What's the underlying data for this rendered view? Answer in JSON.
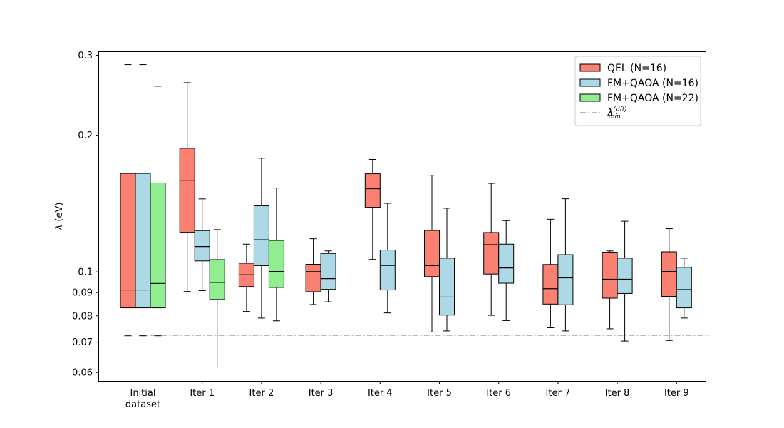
{
  "chart_data": {
    "type": "box",
    "title": "",
    "xlabel": "",
    "ylabel": {
      "symbol": "λ",
      "unit": " (eV)"
    },
    "yscale": "log",
    "ylim": [
      0.0575,
      0.305
    ],
    "yticks": [
      {
        "value": 0.3,
        "label": "0.3"
      },
      {
        "value": 0.2,
        "label": "0.2"
      },
      {
        "value": 0.1,
        "label": "0.1"
      },
      {
        "value": 0.09,
        "label": "0.09"
      },
      {
        "value": 0.08,
        "label": "0.08"
      },
      {
        "value": 0.07,
        "label": "0.07"
      },
      {
        "value": 0.06,
        "label": "0.06"
      }
    ],
    "categories": [
      [
        "Initial",
        "dataset"
      ],
      [
        "Iter 1"
      ],
      [
        "Iter 2"
      ],
      [
        "Iter 3"
      ],
      [
        "Iter 4"
      ],
      [
        "Iter 5"
      ],
      [
        "Iter 6"
      ],
      [
        "Iter 7"
      ],
      [
        "Iter 8"
      ],
      [
        "Iter 9"
      ]
    ],
    "series": [
      {
        "name": "QEL (N=16)",
        "color": "#fa8072",
        "boxes": [
          {
            "cat": 0,
            "whislo": 0.0723,
            "q1": 0.0833,
            "med": 0.0912,
            "q3": 0.1648,
            "whishi": 0.2862
          },
          {
            "cat": 1,
            "whislo": 0.0905,
            "q1": 0.1222,
            "med": 0.1592,
            "q3": 0.1872,
            "whishi": 0.2611
          },
          {
            "cat": 2,
            "whislo": 0.0818,
            "q1": 0.0928,
            "med": 0.0985,
            "q3": 0.1045,
            "whishi": 0.1151
          },
          {
            "cat": 3,
            "whislo": 0.0847,
            "q1": 0.0904,
            "med": 0.1001,
            "q3": 0.1039,
            "whishi": 0.1183
          },
          {
            "cat": 4,
            "whislo": 0.1065,
            "q1": 0.1388,
            "med": 0.1525,
            "q3": 0.1645,
            "whishi": 0.1769
          },
          {
            "cat": 5,
            "whislo": 0.0737,
            "q1": 0.0976,
            "med": 0.1032,
            "q3": 0.1234,
            "whishi": 0.1633
          },
          {
            "cat": 6,
            "whislo": 0.0802,
            "q1": 0.0989,
            "med": 0.1148,
            "q3": 0.1221,
            "whishi": 0.1567
          },
          {
            "cat": 7,
            "whislo": 0.0753,
            "q1": 0.0849,
            "med": 0.0918,
            "q3": 0.1038,
            "whishi": 0.1306
          },
          {
            "cat": 8,
            "whislo": 0.0749,
            "q1": 0.0875,
            "med": 0.0963,
            "q3": 0.1105,
            "whishi": 0.1112
          },
          {
            "cat": 9,
            "whislo": 0.0706,
            "q1": 0.0883,
            "med": 0.1002,
            "q3": 0.1107,
            "whishi": 0.1245
          }
        ]
      },
      {
        "name": "FM+QAOA (N=16)",
        "color": "#add8e6",
        "boxes": [
          {
            "cat": 0,
            "whislo": 0.0723,
            "q1": 0.0833,
            "med": 0.0912,
            "q3": 0.1648,
            "whishi": 0.2862
          },
          {
            "cat": 1,
            "whislo": 0.0909,
            "q1": 0.1057,
            "med": 0.1137,
            "q3": 0.1233,
            "whishi": 0.1448
          },
          {
            "cat": 2,
            "whislo": 0.0791,
            "q1": 0.1032,
            "med": 0.1177,
            "q3": 0.1398,
            "whishi": 0.178
          },
          {
            "cat": 3,
            "whislo": 0.0859,
            "q1": 0.0915,
            "med": 0.0966,
            "q3": 0.1098,
            "whishi": 0.1112
          },
          {
            "cat": 4,
            "whislo": 0.0812,
            "q1": 0.0912,
            "med": 0.1033,
            "q3": 0.1117,
            "whishi": 0.1416
          },
          {
            "cat": 5,
            "whislo": 0.0741,
            "q1": 0.0803,
            "med": 0.088,
            "q3": 0.1072,
            "whishi": 0.1381
          },
          {
            "cat": 6,
            "whislo": 0.0781,
            "q1": 0.0944,
            "med": 0.102,
            "q3": 0.1151,
            "whishi": 0.1297
          },
          {
            "cat": 7,
            "whislo": 0.0741,
            "q1": 0.0846,
            "med": 0.097,
            "q3": 0.1091,
            "whishi": 0.1449
          },
          {
            "cat": 8,
            "whislo": 0.0704,
            "q1": 0.0896,
            "med": 0.0963,
            "q3": 0.1072,
            "whishi": 0.1293
          },
          {
            "cat": 9,
            "whislo": 0.0791,
            "q1": 0.0833,
            "med": 0.0914,
            "q3": 0.1023,
            "whishi": 0.1072
          }
        ]
      },
      {
        "name": "FM+QAOA (N=22)",
        "color": "#90ee90",
        "boxes": [
          {
            "cat": 0,
            "whislo": 0.0723,
            "q1": 0.0833,
            "med": 0.0943,
            "q3": 0.157,
            "whishi": 0.2565
          },
          {
            "cat": 1,
            "whislo": 0.0617,
            "q1": 0.0869,
            "med": 0.0948,
            "q3": 0.1064,
            "whishi": 0.1239
          },
          {
            "cat": 2,
            "whislo": 0.078,
            "q1": 0.0924,
            "med": 0.1002,
            "q3": 0.1173,
            "whishi": 0.153
          }
        ]
      }
    ],
    "reference_line": {
      "value": 0.0725,
      "label": {
        "base": "λ",
        "sup": "(dft)",
        "sub": "min"
      },
      "color": "#a0a0a0"
    },
    "legend": {
      "position": "top-right"
    }
  }
}
